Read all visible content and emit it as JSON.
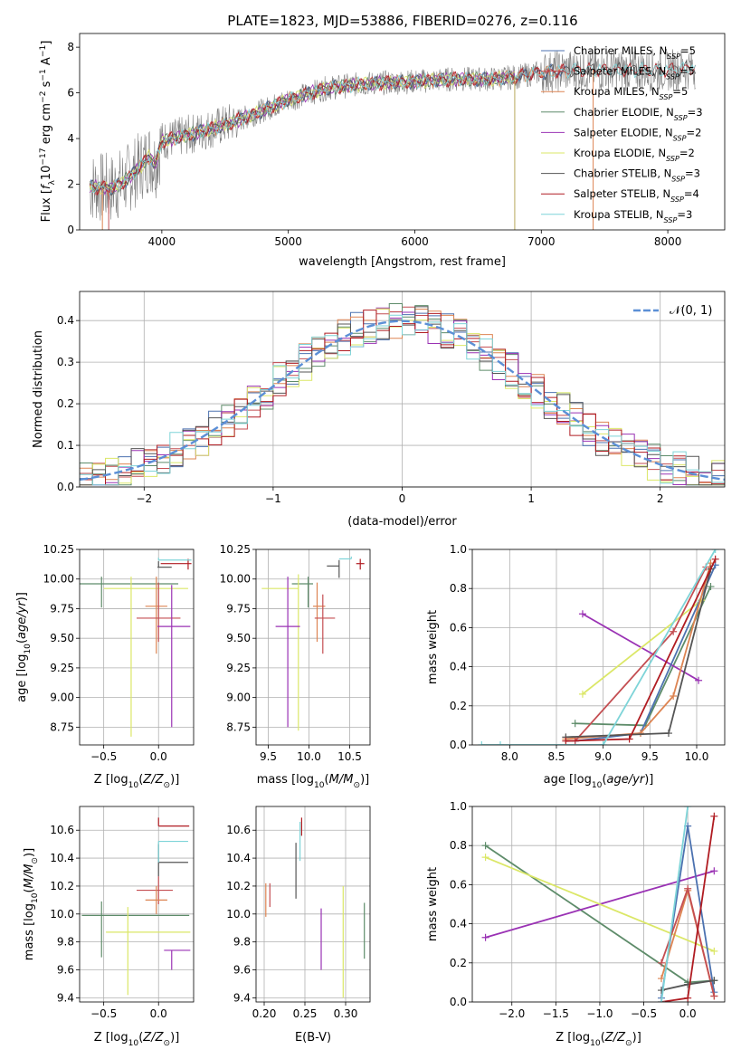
{
  "title": "PLATE=1823, MJD=53886, FIBERID=0276, z=0.116",
  "colors": {
    "data": "#808080",
    "models": [
      "#4c72b0",
      "#c44e52",
      "#dd8452",
      "#5e8c6a",
      "#9a32b4",
      "#dbe767",
      "#555555",
      "#b01c22",
      "#7ed4d8"
    ],
    "normal": "#5b8fd6"
  },
  "legend": {
    "labels": [
      "Chabrier MILES, N_SSP=5",
      "Salpeter MILES, N_SSP=5",
      "Kroupa MILES, N_SSP=5",
      "Chabrier ELODIE, N_SSP=3",
      "Salpeter ELODIE, N_SSP=2",
      "Kroupa ELODIE, N_SSP=2",
      "Chabrier STELIB, N_SSP=3",
      "Salpeter STELIB, N_SSP=4",
      "Kroupa STELIB, N_SSP=3"
    ],
    "normal_label": "𝒩(0, 1)"
  },
  "chart_data": [
    {
      "id": "spectrum",
      "type": "line",
      "xlabel": "wavelength [Angstrom, rest frame]",
      "ylabel": "Flux [f_λ 10^-17 erg cm^-2 s^-1 A^-1]",
      "xlim": [
        3350,
        8450
      ],
      "ylim": [
        0,
        8.6
      ],
      "xticks": [
        4000,
        5000,
        6000,
        7000,
        8000
      ],
      "yticks": [
        0,
        2,
        4,
        6,
        8
      ],
      "continuum": {
        "x": [
          3430,
          3600,
          3700,
          3800,
          3900,
          3950,
          4000,
          4100,
          4300,
          4500,
          4700,
          5000,
          5300,
          5600,
          6000,
          6300,
          6600,
          6800,
          7000,
          7300,
          7600,
          8000,
          8220
        ],
        "y": [
          1.9,
          1.8,
          2.1,
          2.6,
          3.2,
          2.9,
          3.9,
          4.0,
          4.3,
          4.6,
          5.0,
          5.7,
          6.2,
          6.4,
          6.5,
          6.6,
          6.6,
          6.7,
          6.9,
          7.0,
          7.0,
          7.0,
          7.1
        ]
      },
      "legend_position": "upper right",
      "grid": false
    },
    {
      "id": "residuals",
      "type": "histogram",
      "xlabel": "(data-model)/error",
      "ylabel": "Normed distribution",
      "xlim": [
        -2.5,
        2.5
      ],
      "ylim": [
        0,
        0.47
      ],
      "xticks": [
        -2,
        -1,
        0,
        1,
        2
      ],
      "yticks": [
        0.0,
        0.1,
        0.2,
        0.3,
        0.4
      ],
      "bin_width": 0.1,
      "legend_position": "upper right",
      "grid": true
    },
    {
      "id": "age_vs_Z",
      "type": "errorbar",
      "xlabel": "Z [log10(Z/Z_sun)]",
      "ylabel": "age  [log10(age/yr)]",
      "xlim": [
        -0.72,
        0.32
      ],
      "ylim": [
        8.6,
        10.25
      ],
      "xticks": [
        -0.5,
        0.0
      ],
      "yticks": [
        8.75,
        9.0,
        9.25,
        9.5,
        9.75,
        10.0,
        10.25
      ],
      "points": [
        {
          "c": 3,
          "x": -0.52,
          "xe": [
            0.2,
            0.7
          ],
          "y": 9.96,
          "ye": [
            0.2,
            0.06
          ]
        },
        {
          "c": 5,
          "x": -0.25,
          "xe": [
            0.25,
            0.52
          ],
          "y": 9.92,
          "ye": [
            1.25,
            0.1
          ]
        },
        {
          "c": 2,
          "x": -0.02,
          "xe": [
            0.1,
            0.1
          ],
          "y": 9.77,
          "ye": [
            0.4,
            0.25
          ]
        },
        {
          "c": 1,
          "x": 0.0,
          "xe": [
            0.2,
            0.2
          ],
          "y": 9.67,
          "ye": [
            0.2,
            0.3
          ]
        },
        {
          "c": 4,
          "x": 0.12,
          "xe": [
            0.13,
            0.17
          ],
          "y": 9.6,
          "ye": [
            0.85,
            0.35
          ]
        },
        {
          "c": 6,
          "x": 0.0,
          "xe": [
            0.01,
            0.12
          ],
          "y": 10.1,
          "ye": [
            0.0,
            0.05
          ]
        },
        {
          "c": 7,
          "x": 0.27,
          "xe": [
            0.25,
            0.03
          ],
          "y": 10.13,
          "ye": [
            0.05,
            0.04
          ]
        },
        {
          "c": 8,
          "x": 0.0,
          "xe": [
            0.0,
            0.3
          ],
          "y": 10.16,
          "ye": [
            0.0,
            0.02
          ]
        }
      ]
    },
    {
      "id": "age_vs_mass",
      "type": "errorbar",
      "xlabel": "mass [log10(M/M_sun)]",
      "ylabel": "",
      "xlim": [
        9.35,
        10.75
      ],
      "ylim": [
        8.6,
        10.25
      ],
      "xticks": [
        9.5,
        10.0,
        10.5
      ],
      "yticks": [
        8.75,
        9.0,
        9.25,
        9.5,
        9.75,
        10.0,
        10.25
      ],
      "points": [
        {
          "c": 3,
          "x": 9.99,
          "xe": [
            0.2,
            0.06
          ],
          "y": 9.96,
          "ye": [
            0.2,
            0.06
          ]
        },
        {
          "c": 5,
          "x": 9.87,
          "xe": [
            0.45,
            0.0
          ],
          "y": 9.92,
          "ye": [
            1.2,
            0.12
          ]
        },
        {
          "c": 4,
          "x": 9.74,
          "xe": [
            0.15,
            0.15
          ],
          "y": 9.6,
          "ye": [
            0.85,
            0.42
          ]
        },
        {
          "c": 2,
          "x": 10.1,
          "xe": [
            0.05,
            0.1
          ],
          "y": 9.77,
          "ye": [
            0.3,
            0.2
          ]
        },
        {
          "c": 1,
          "x": 10.17,
          "xe": [
            0.1,
            0.15
          ],
          "y": 9.67,
          "ye": [
            0.3,
            0.2
          ]
        },
        {
          "c": 6,
          "x": 10.37,
          "xe": [
            0.15,
            0.0
          ],
          "y": 10.11,
          "ye": [
            0.1,
            0.05
          ]
        },
        {
          "c": 7,
          "x": 10.63,
          "xe": [
            0.05,
            0.05
          ],
          "y": 10.13,
          "ye": [
            0.05,
            0.04
          ]
        },
        {
          "c": 8,
          "x": 10.52,
          "xe": [
            0.15,
            0.0
          ],
          "y": 10.17,
          "ye": [
            0.0,
            0.02
          ]
        }
      ]
    },
    {
      "id": "weight_vs_age",
      "type": "line",
      "xlabel": "age  [log10(age/yr)]",
      "ylabel": "mass weight",
      "xlim": [
        7.6,
        10.3
      ],
      "ylim": [
        0,
        1.0
      ],
      "xticks": [
        8.0,
        8.5,
        9.0,
        9.5,
        10.0
      ],
      "yticks": [
        0.0,
        0.2,
        0.4,
        0.6,
        0.8,
        1.0
      ],
      "series": [
        {
          "c": 3,
          "x": [
            8.7,
            9.45,
            10.15
          ],
          "y": [
            0.11,
            0.1,
            0.81
          ]
        },
        {
          "c": 4,
          "x": [
            8.78,
            10.02
          ],
          "y": [
            0.67,
            0.33
          ]
        },
        {
          "c": 5,
          "x": [
            8.78,
            10.05
          ],
          "y": [
            0.26,
            0.74
          ]
        },
        {
          "c": 0,
          "x": [
            8.7,
            9.4,
            10.2
          ],
          "y": [
            0.02,
            0.06,
            0.92
          ]
        },
        {
          "c": 2,
          "x": [
            8.6,
            9.4,
            9.75,
            10.15
          ],
          "y": [
            0.03,
            0.06,
            0.25,
            0.93
          ]
        },
        {
          "c": 1,
          "x": [
            8.7,
            9.75,
            10.1
          ],
          "y": [
            0.02,
            0.58,
            0.91
          ]
        },
        {
          "c": 6,
          "x": [
            8.6,
            9.7,
            10.15
          ],
          "y": [
            0.04,
            0.06,
            0.9
          ]
        },
        {
          "c": 7,
          "x": [
            8.6,
            9.28,
            10.2
          ],
          "y": [
            0.02,
            0.03,
            0.95
          ]
        },
        {
          "c": 8,
          "x": [
            7.7,
            7.9,
            9.0,
            10.2
          ],
          "y": [
            0.0,
            0.0,
            0.0,
            1.0
          ]
        }
      ]
    },
    {
      "id": "mass_vs_Z",
      "type": "errorbar",
      "xlabel": "Z [log10(Z/Z_sun)]",
      "ylabel": "mass [log10(M/M_sun)]",
      "xlim": [
        -0.72,
        0.32
      ],
      "ylim": [
        9.37,
        10.77
      ],
      "xticks": [
        -0.5,
        0.0
      ],
      "yticks": [
        9.4,
        9.6,
        9.8,
        10.0,
        10.2,
        10.4,
        10.6
      ],
      "points": [
        {
          "c": 3,
          "x": -0.52,
          "xe": [
            0.18,
            0.8
          ],
          "y": 9.99,
          "ye": [
            0.3,
            0.1
          ]
        },
        {
          "c": 5,
          "x": -0.28,
          "xe": [
            0.2,
            0.57
          ],
          "y": 9.87,
          "ye": [
            0.45,
            0.18
          ]
        },
        {
          "c": 1,
          "x": 0.0,
          "xe": [
            0.2,
            0.13
          ],
          "y": 10.17,
          "ye": [
            0.1,
            0.1
          ]
        },
        {
          "c": 2,
          "x": -0.02,
          "xe": [
            0.1,
            0.1
          ],
          "y": 10.1,
          "ye": [
            0.1,
            0.1
          ]
        },
        {
          "c": 4,
          "x": 0.12,
          "xe": [
            0.07,
            0.17
          ],
          "y": 9.74,
          "ye": [
            0.14,
            0.0
          ]
        },
        {
          "c": 6,
          "x": 0.0,
          "xe": [
            0.0,
            0.27
          ],
          "y": 10.37,
          "ye": [
            0.1,
            0.13
          ]
        },
        {
          "c": 8,
          "x": 0.0,
          "xe": [
            0.0,
            0.27
          ],
          "y": 10.52,
          "ye": [
            0.15,
            0.0
          ]
        },
        {
          "c": 7,
          "x": 0.0,
          "xe": [
            0.0,
            0.28
          ],
          "y": 10.63,
          "ye": [
            0.0,
            0.06
          ]
        }
      ]
    },
    {
      "id": "mass_vs_ebv",
      "type": "errorbar",
      "xlabel": "E(B-V)",
      "ylabel": "",
      "xlim": [
        0.19,
        0.33
      ],
      "ylim": [
        9.37,
        10.77
      ],
      "xticks": [
        0.2,
        0.25,
        0.3
      ],
      "yticks": [
        9.4,
        9.6,
        9.8,
        10.0,
        10.2,
        10.4,
        10.6
      ],
      "points": [
        {
          "c": 2,
          "x": 0.202,
          "xe": [
            0,
            0
          ],
          "y": 10.04,
          "ye": [
            0.06,
            0.18
          ]
        },
        {
          "c": 1,
          "x": 0.207,
          "xe": [
            0,
            0
          ],
          "y": 10.1,
          "ye": [
            0.05,
            0.12
          ]
        },
        {
          "c": 6,
          "x": 0.239,
          "xe": [
            0,
            0
          ],
          "y": 10.31,
          "ye": [
            0.2,
            0.2
          ]
        },
        {
          "c": 8,
          "x": 0.244,
          "xe": [
            0,
            0
          ],
          "y": 10.52,
          "ye": [
            0.14,
            0.14
          ]
        },
        {
          "c": 7,
          "x": 0.246,
          "xe": [
            0,
            0
          ],
          "y": 10.6,
          "ye": [
            0.04,
            0.09
          ]
        },
        {
          "c": 4,
          "x": 0.27,
          "xe": [
            0,
            0
          ],
          "y": 9.8,
          "ye": [
            0.2,
            0.24
          ]
        },
        {
          "c": 5,
          "x": 0.297,
          "xe": [
            0,
            0
          ],
          "y": 9.8,
          "ye": [
            0.4,
            0.4
          ]
        },
        {
          "c": 3,
          "x": 0.323,
          "xe": [
            0,
            0
          ],
          "y": 9.88,
          "ye": [
            0.2,
            0.2
          ]
        }
      ]
    },
    {
      "id": "weight_vs_Z",
      "type": "line",
      "xlabel": "Z [log10(Z/Z_sun)]",
      "ylabel": "mass weight",
      "xlim": [
        -2.45,
        0.42
      ],
      "ylim": [
        0,
        1.0
      ],
      "xticks": [
        -2.0,
        -1.5,
        -1.0,
        -0.5,
        0.0
      ],
      "yticks": [
        0.0,
        0.2,
        0.4,
        0.6,
        0.8,
        1.0
      ],
      "series": [
        {
          "c": 3,
          "x": [
            -2.3,
            0.0,
            0.3
          ],
          "y": [
            0.8,
            0.1,
            0.11
          ]
        },
        {
          "c": 4,
          "x": [
            -2.3,
            0.3
          ],
          "y": [
            0.33,
            0.67
          ]
        },
        {
          "c": 5,
          "x": [
            -2.3,
            0.3
          ],
          "y": [
            0.74,
            0.26
          ]
        },
        {
          "c": 0,
          "x": [
            -0.3,
            0.0,
            0.3
          ],
          "y": [
            0.02,
            0.9,
            0.05
          ]
        },
        {
          "c": 2,
          "x": [
            -0.3,
            0.0,
            0.3
          ],
          "y": [
            0.12,
            0.57,
            0.03
          ]
        },
        {
          "c": 1,
          "x": [
            -0.3,
            0.0,
            0.3
          ],
          "y": [
            0.2,
            0.58,
            0.03
          ]
        },
        {
          "c": 6,
          "x": [
            -0.3,
            0.0,
            0.3
          ],
          "y": [
            0.06,
            0.09,
            0.11
          ]
        },
        {
          "c": 7,
          "x": [
            -0.3,
            0.0,
            0.3
          ],
          "y": [
            0.0,
            0.02,
            0.95
          ]
        },
        {
          "c": 8,
          "x": [
            -0.3,
            0.0
          ],
          "y": [
            0.0,
            1.0
          ]
        }
      ]
    }
  ]
}
